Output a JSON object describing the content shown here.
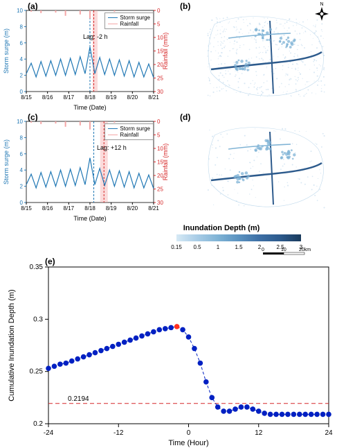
{
  "panel_a": {
    "label": "(a)",
    "type": "line",
    "x_ticks": [
      "8/15",
      "8/16",
      "8/17",
      "8/18",
      "8/19",
      "8/20",
      "8/21"
    ],
    "x_label": "Time (Date)",
    "y_left_label": "Storm surge (m)",
    "y_left_ticks": [
      0,
      2,
      4,
      6,
      8,
      10
    ],
    "y_left_color": "#1f77b4",
    "y_right_label": "Rainfall (mm)",
    "y_right_ticks": [
      0,
      5,
      10,
      15,
      20,
      25,
      30
    ],
    "y_right_color": "#d62728",
    "legend": [
      "Storm surge",
      "Rainfall"
    ],
    "lag_text": "Lag: -2 h",
    "surge_color": "#1f77b4",
    "rain_color": "#f4a6a6",
    "surge": [
      2.2,
      3.5,
      1.8,
      3.7,
      1.9,
      3.8,
      2.0,
      4.0,
      2.0,
      4.1,
      2.1,
      4.3,
      2.2,
      5.5,
      2.2,
      4.2,
      2.1,
      4.0,
      2.0,
      3.9,
      1.9,
      3.8,
      1.8,
      3.6,
      1.8,
      3.4,
      1.7
    ],
    "rain": [
      0,
      0.5,
      0,
      1,
      0,
      0,
      0.8,
      0,
      2,
      0,
      0,
      1.5,
      0,
      3,
      0,
      0,
      0,
      0,
      0.5,
      0,
      0,
      0,
      0,
      0,
      0,
      0,
      0
    ],
    "shade_x": [
      0.52,
      0.56
    ],
    "shade_color": "rgba(244,166,166,0.4)",
    "dash_x": [
      0.5,
      0.53
    ]
  },
  "panel_b": {
    "label": "(b)",
    "type": "map",
    "bg_color": "#ffffff",
    "light_blue": "#bfd9ec",
    "mid_blue": "#7fb3d5",
    "dark_blue": "#2c5a8c"
  },
  "panel_c": {
    "label": "(c)",
    "type": "line",
    "x_ticks": [
      "8/15",
      "8/16",
      "8/17",
      "8/18",
      "8/19",
      "8/20",
      "8/21"
    ],
    "x_label": "Time (Date)",
    "y_left_label": "Storm surge (m)",
    "y_left_ticks": [
      0,
      2,
      4,
      6,
      8,
      10
    ],
    "y_left_color": "#1f77b4",
    "y_right_label": "Rainfall (mm)",
    "y_right_ticks": [
      0,
      5,
      10,
      15,
      20,
      25,
      30
    ],
    "y_right_color": "#d62728",
    "legend": [
      "Storm surge",
      "Rainfall"
    ],
    "lag_text": "Lag: +12 h",
    "surge_color": "#1f77b4",
    "rain_color": "#f4a6a6",
    "surge": [
      2.2,
      3.5,
      1.8,
      3.7,
      1.9,
      3.8,
      2.0,
      4.0,
      2.0,
      4.1,
      2.1,
      4.3,
      2.2,
      5.5,
      2.2,
      4.2,
      2.1,
      4.0,
      2.0,
      3.9,
      1.9,
      3.8,
      1.8,
      3.6,
      1.8,
      3.4,
      1.7
    ],
    "rain": [
      0,
      0.5,
      0,
      1,
      0,
      0,
      0.8,
      0,
      2,
      0,
      0,
      1.5,
      0,
      3,
      0,
      0,
      0,
      0,
      0.5,
      0,
      0,
      0,
      0,
      0,
      0,
      0,
      0
    ],
    "shade_x": [
      0.58,
      0.64
    ],
    "shade_color": "rgba(244,166,166,0.4)",
    "dash_x": [
      0.53,
      0.61
    ]
  },
  "panel_d": {
    "label": "(d)",
    "type": "map",
    "bg_color": "#ffffff",
    "light_blue": "#bfd9ec",
    "mid_blue": "#7fb3d5",
    "dark_blue": "#2c5a8c"
  },
  "colorbar": {
    "title": "Inundation Depth (m)",
    "ticks": [
      "0.15",
      "0.5",
      "1",
      "1.5",
      "2",
      "2.5",
      "3"
    ],
    "colors": [
      "#d6e9f5",
      "#a8cce6",
      "#7fb3d5",
      "#5a92c0",
      "#3d6fa5",
      "#2c5a8c",
      "#1a3a5c"
    ],
    "scale_text": "0",
    "scale_text2": "10",
    "scale_text3": "20km"
  },
  "panel_e": {
    "label": "(e)",
    "type": "scatter-line",
    "x_label": "Time (Hour)",
    "x_ticks": [
      -24,
      -12,
      0,
      12,
      24
    ],
    "y_label": "Cumulative Inundation Depth (m)",
    "y_ticks": [
      0.2,
      0.25,
      0.3,
      0.35
    ],
    "ref_line_y": 0.2194,
    "ref_text": "0.2194",
    "ref_color": "#d62728",
    "marker_color": "#0020c2",
    "peak_color": "#ff3020",
    "data": [
      [
        -24,
        0.253
      ],
      [
        -23,
        0.255
      ],
      [
        -22,
        0.257
      ],
      [
        -21,
        0.258
      ],
      [
        -20,
        0.26
      ],
      [
        -19,
        0.262
      ],
      [
        -18,
        0.264
      ],
      [
        -17,
        0.266
      ],
      [
        -16,
        0.268
      ],
      [
        -15,
        0.27
      ],
      [
        -14,
        0.272
      ],
      [
        -13,
        0.274
      ],
      [
        -12,
        0.276
      ],
      [
        -11,
        0.278
      ],
      [
        -10,
        0.28
      ],
      [
        -9,
        0.282
      ],
      [
        -8,
        0.284
      ],
      [
        -7,
        0.286
      ],
      [
        -6,
        0.288
      ],
      [
        -5,
        0.29
      ],
      [
        -4,
        0.291
      ],
      [
        -3,
        0.292
      ],
      [
        -2,
        0.293
      ],
      [
        -1,
        0.29
      ],
      [
        0,
        0.283
      ],
      [
        1,
        0.272
      ],
      [
        2,
        0.258
      ],
      [
        3,
        0.24
      ],
      [
        4,
        0.225
      ],
      [
        5,
        0.216
      ],
      [
        6,
        0.212
      ],
      [
        7,
        0.212
      ],
      [
        8,
        0.214
      ],
      [
        9,
        0.216
      ],
      [
        10,
        0.216
      ],
      [
        11,
        0.214
      ],
      [
        12,
        0.212
      ],
      [
        13,
        0.21
      ],
      [
        14,
        0.209
      ],
      [
        15,
        0.209
      ],
      [
        16,
        0.209
      ],
      [
        17,
        0.209
      ],
      [
        18,
        0.209
      ],
      [
        19,
        0.209
      ],
      [
        20,
        0.209
      ],
      [
        21,
        0.209
      ],
      [
        22,
        0.209
      ],
      [
        23,
        0.209
      ],
      [
        24,
        0.209
      ]
    ],
    "peak_index": 22
  }
}
